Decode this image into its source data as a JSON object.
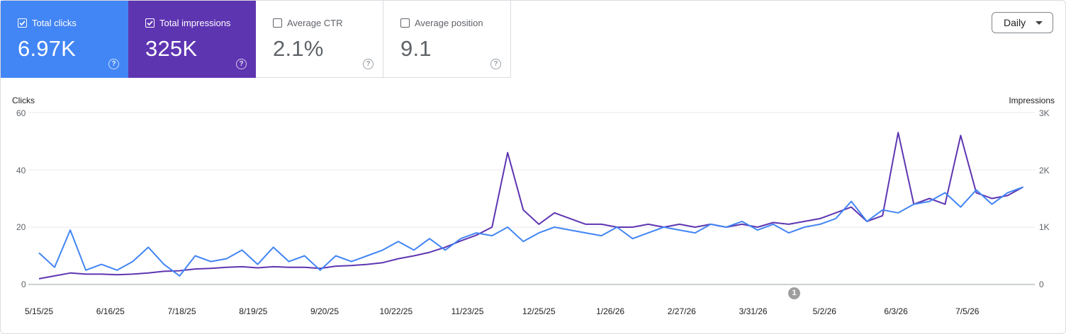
{
  "metrics": [
    {
      "label": "Total clicks",
      "value": "6.97K",
      "checked": true,
      "color": "#4285f4"
    },
    {
      "label": "Total impressions",
      "value": "325K",
      "checked": true,
      "color": "#5e35b1"
    },
    {
      "label": "Average CTR",
      "value": "2.1%",
      "checked": false,
      "color": "#ffffff"
    },
    {
      "label": "Average position",
      "value": "9.1",
      "checked": false,
      "color": "#ffffff"
    }
  ],
  "help_glyph": "?",
  "granularity": {
    "selected": "Daily"
  },
  "annotation_marker": "1",
  "chart_data": {
    "type": "line",
    "left_axis": {
      "title": "Clicks",
      "ticks": [
        "60",
        "40",
        "20",
        "0"
      ],
      "ylim": [
        0,
        60
      ]
    },
    "right_axis": {
      "title": "Impressions",
      "ticks": [
        "3K",
        "2K",
        "1K",
        "0"
      ],
      "ylim": [
        0,
        3000
      ]
    },
    "x_ticks": [
      "5/15/25",
      "6/16/25",
      "7/18/25",
      "8/19/25",
      "9/20/25",
      "10/22/25",
      "11/23/25",
      "12/25/25",
      "1/26/26",
      "2/27/26",
      "3/31/26",
      "5/2/26",
      "6/3/26",
      "7/5/26"
    ],
    "x_range": [
      "5/15/25",
      "8/2/26"
    ],
    "grid": true,
    "series": [
      {
        "name": "Clicks",
        "axis": "left",
        "color": "#4285f4",
        "points": [
          [
            "5/15/25",
            11
          ],
          [
            "5/22/25",
            6
          ],
          [
            "5/29/25",
            19
          ],
          [
            "6/5/25",
            5
          ],
          [
            "6/12/25",
            7
          ],
          [
            "6/19/25",
            5
          ],
          [
            "6/26/25",
            8
          ],
          [
            "7/3/25",
            13
          ],
          [
            "7/10/25",
            7
          ],
          [
            "7/17/25",
            3
          ],
          [
            "7/24/25",
            10
          ],
          [
            "7/31/25",
            8
          ],
          [
            "8/7/25",
            9
          ],
          [
            "8/14/25",
            12
          ],
          [
            "8/21/25",
            7
          ],
          [
            "8/28/25",
            13
          ],
          [
            "9/4/25",
            8
          ],
          [
            "9/11/25",
            10
          ],
          [
            "9/18/25",
            5
          ],
          [
            "9/25/25",
            10
          ],
          [
            "10/2/25",
            8
          ],
          [
            "10/9/25",
            10
          ],
          [
            "10/16/25",
            12
          ],
          [
            "10/23/25",
            15
          ],
          [
            "10/30/25",
            12
          ],
          [
            "11/6/25",
            16
          ],
          [
            "11/13/25",
            12
          ],
          [
            "11/20/25",
            16
          ],
          [
            "11/27/25",
            18
          ],
          [
            "12/4/25",
            17
          ],
          [
            "12/11/25",
            20
          ],
          [
            "12/18/25",
            15
          ],
          [
            "12/25/25",
            18
          ],
          [
            "1/1/26",
            20
          ],
          [
            "1/8/26",
            19
          ],
          [
            "1/15/26",
            18
          ],
          [
            "1/22/26",
            17
          ],
          [
            "1/29/26",
            20
          ],
          [
            "2/5/26",
            16
          ],
          [
            "2/12/26",
            18
          ],
          [
            "2/19/26",
            20
          ],
          [
            "2/26/26",
            19
          ],
          [
            "3/5/26",
            18
          ],
          [
            "3/12/26",
            21
          ],
          [
            "3/19/26",
            20
          ],
          [
            "3/26/26",
            22
          ],
          [
            "4/2/26",
            19
          ],
          [
            "4/9/26",
            21
          ],
          [
            "4/16/26",
            18
          ],
          [
            "4/23/26",
            20
          ],
          [
            "4/30/26",
            21
          ],
          [
            "5/7/26",
            23
          ],
          [
            "5/14/26",
            29
          ],
          [
            "5/21/26",
            22
          ],
          [
            "5/28/26",
            26
          ],
          [
            "6/4/26",
            25
          ],
          [
            "6/11/26",
            28
          ],
          [
            "6/18/26",
            29
          ],
          [
            "6/25/26",
            32
          ],
          [
            "7/2/26",
            27
          ],
          [
            "7/9/26",
            33
          ],
          [
            "7/16/26",
            28
          ],
          [
            "7/23/26",
            32
          ],
          [
            "7/30/26",
            34
          ]
        ]
      },
      {
        "name": "Impressions",
        "axis": "right",
        "color": "#5e35b1",
        "points": [
          [
            "5/15/25",
            100
          ],
          [
            "5/22/25",
            150
          ],
          [
            "5/29/25",
            200
          ],
          [
            "6/5/25",
            180
          ],
          [
            "6/12/25",
            180
          ],
          [
            "6/19/25",
            170
          ],
          [
            "6/26/25",
            180
          ],
          [
            "7/3/25",
            200
          ],
          [
            "7/10/25",
            230
          ],
          [
            "7/17/25",
            240
          ],
          [
            "7/24/25",
            270
          ],
          [
            "7/31/25",
            280
          ],
          [
            "8/7/25",
            300
          ],
          [
            "8/14/25",
            310
          ],
          [
            "8/21/25",
            290
          ],
          [
            "8/28/25",
            310
          ],
          [
            "9/4/25",
            300
          ],
          [
            "9/11/25",
            300
          ],
          [
            "9/18/25",
            280
          ],
          [
            "9/25/25",
            320
          ],
          [
            "10/2/25",
            330
          ],
          [
            "10/9/25",
            350
          ],
          [
            "10/16/25",
            380
          ],
          [
            "10/23/25",
            450
          ],
          [
            "10/30/25",
            500
          ],
          [
            "11/6/25",
            560
          ],
          [
            "11/13/25",
            650
          ],
          [
            "11/20/25",
            760
          ],
          [
            "11/27/25",
            860
          ],
          [
            "12/4/25",
            1000
          ],
          [
            "12/11/25",
            2300
          ],
          [
            "12/18/25",
            1300
          ],
          [
            "12/25/25",
            1050
          ],
          [
            "1/1/26",
            1250
          ],
          [
            "1/8/26",
            1150
          ],
          [
            "1/15/26",
            1050
          ],
          [
            "1/22/26",
            1050
          ],
          [
            "1/29/26",
            1000
          ],
          [
            "2/5/26",
            1000
          ],
          [
            "2/12/26",
            1050
          ],
          [
            "2/19/26",
            1000
          ],
          [
            "2/26/26",
            1050
          ],
          [
            "3/5/26",
            1000
          ],
          [
            "3/12/26",
            1050
          ],
          [
            "3/19/26",
            1000
          ],
          [
            "3/26/26",
            1050
          ],
          [
            "4/2/26",
            1000
          ],
          [
            "4/9/26",
            1080
          ],
          [
            "4/16/26",
            1050
          ],
          [
            "4/23/26",
            1100
          ],
          [
            "4/30/26",
            1150
          ],
          [
            "5/7/26",
            1250
          ],
          [
            "5/14/26",
            1350
          ],
          [
            "5/21/26",
            1100
          ],
          [
            "5/28/26",
            1200
          ],
          [
            "6/4/26",
            2650
          ],
          [
            "6/11/26",
            1400
          ],
          [
            "6/18/26",
            1500
          ],
          [
            "6/25/26",
            1400
          ],
          [
            "7/2/26",
            2600
          ],
          [
            "7/9/26",
            1600
          ],
          [
            "7/16/26",
            1500
          ],
          [
            "7/23/26",
            1550
          ],
          [
            "7/30/26",
            1700
          ]
        ]
      }
    ]
  }
}
